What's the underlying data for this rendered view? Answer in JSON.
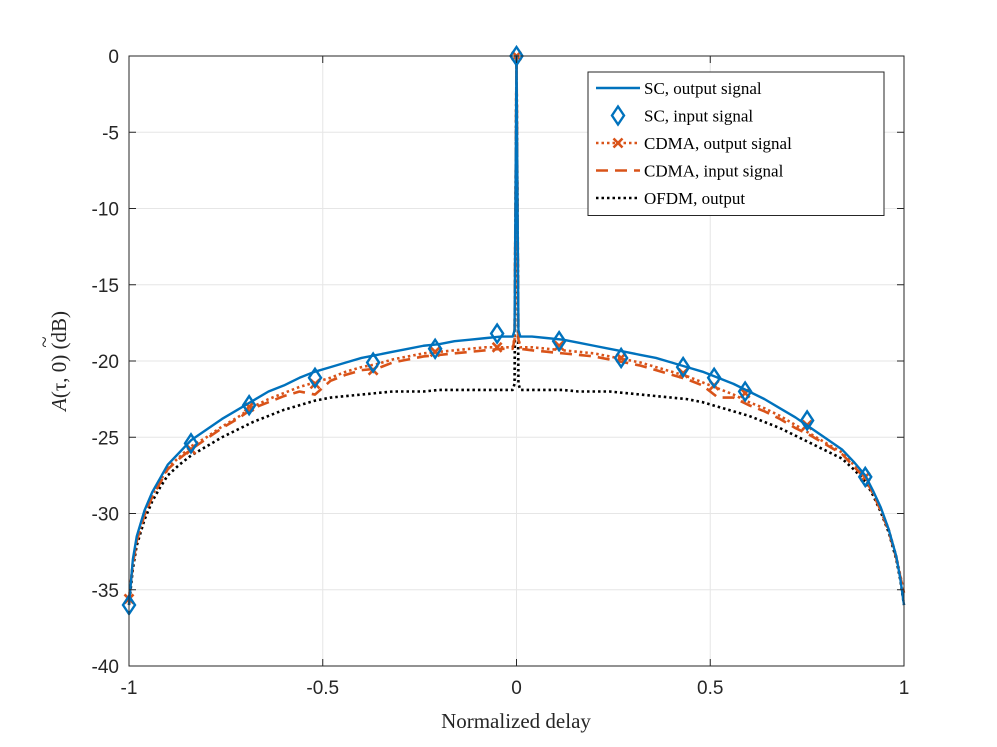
{
  "chart_data": {
    "type": "line",
    "title": "",
    "xlabel": "Normalized delay",
    "ylabel_parts": {
      "symbol": "A",
      "accent": "~",
      "args": "(τ, 0)",
      "unit": " (dB)"
    },
    "xlim": [
      -1,
      1
    ],
    "ylim": [
      -40,
      0
    ],
    "x_ticks": [
      -1,
      -0.5,
      0,
      0.5,
      1
    ],
    "x_tick_labels": [
      "-1",
      "-0.5",
      "0",
      "0.5",
      "1"
    ],
    "y_ticks": [
      0,
      -5,
      -10,
      -15,
      -20,
      -25,
      -30,
      -35,
      -40
    ],
    "y_tick_labels": [
      "0",
      "-5",
      "-10",
      "-15",
      "-20",
      "-25",
      "-30",
      "-35",
      "-40"
    ],
    "grid": true,
    "legend_position": "top-right",
    "series": [
      {
        "name": "SC, output signal",
        "color": "#0072BD",
        "style": "solid",
        "marker": "none",
        "x": [
          -1,
          -0.99,
          -0.98,
          -0.96,
          -0.94,
          -0.92,
          -0.9,
          -0.87,
          -0.84,
          -0.8,
          -0.76,
          -0.72,
          -0.68,
          -0.64,
          -0.6,
          -0.56,
          -0.52,
          -0.48,
          -0.44,
          -0.4,
          -0.36,
          -0.32,
          -0.28,
          -0.24,
          -0.2,
          -0.16,
          -0.12,
          -0.08,
          -0.04,
          -0.01,
          -0.005,
          0,
          0.005,
          0.01,
          0.04,
          0.08,
          0.12,
          0.16,
          0.2,
          0.24,
          0.28,
          0.32,
          0.36,
          0.4,
          0.44,
          0.48,
          0.52,
          0.56,
          0.6,
          0.64,
          0.68,
          0.72,
          0.76,
          0.8,
          0.84,
          0.87,
          0.9,
          0.92,
          0.94,
          0.96,
          0.98,
          0.99,
          1
        ],
        "y": [
          -36,
          -33,
          -31.5,
          -29.8,
          -28.6,
          -27.7,
          -26.8,
          -26,
          -25.2,
          -24.5,
          -23.8,
          -23.2,
          -22.6,
          -22,
          -21.6,
          -21.1,
          -20.7,
          -20.4,
          -20.1,
          -19.8,
          -19.6,
          -19.4,
          -19.2,
          -19,
          -18.9,
          -18.7,
          -18.6,
          -18.5,
          -18.4,
          -18.4,
          -18,
          0,
          -18,
          -18.4,
          -18.4,
          -18.5,
          -18.6,
          -18.8,
          -19,
          -19.2,
          -19.4,
          -19.6,
          -19.8,
          -20.1,
          -20.4,
          -20.7,
          -21.1,
          -21.5,
          -22,
          -22.5,
          -23.1,
          -23.7,
          -24.4,
          -25.1,
          -25.8,
          -26.6,
          -27.5,
          -28.5,
          -29.6,
          -31,
          -32.8,
          -34.2,
          -36
        ]
      },
      {
        "name": "SC, input signal",
        "color": "#0072BD",
        "style": "none",
        "marker": "diamond",
        "x": [
          -1,
          -0.84,
          -0.69,
          -0.52,
          -0.37,
          -0.21,
          -0.05,
          0,
          0.11,
          0.27,
          0.43,
          0.51,
          0.59,
          0.75,
          0.9
        ],
        "y": [
          -36,
          -25.4,
          -22.9,
          -21.1,
          -20.1,
          -19.2,
          -18.2,
          0,
          -18.7,
          -19.8,
          -20.4,
          -21.1,
          -22,
          -23.9,
          -27.6
        ]
      },
      {
        "name": "CDMA, output signal",
        "color": "#D95319",
        "style": "dotted",
        "marker": "x",
        "x": [
          -1,
          -0.99,
          -0.98,
          -0.96,
          -0.94,
          -0.92,
          -0.9,
          -0.87,
          -0.84,
          -0.8,
          -0.76,
          -0.72,
          -0.68,
          -0.64,
          -0.6,
          -0.56,
          -0.52,
          -0.48,
          -0.44,
          -0.4,
          -0.36,
          -0.32,
          -0.28,
          -0.24,
          -0.2,
          -0.16,
          -0.12,
          -0.08,
          -0.04,
          -0.01,
          -0.005,
          0,
          0.005,
          0.01,
          0.04,
          0.08,
          0.12,
          0.16,
          0.2,
          0.24,
          0.28,
          0.32,
          0.36,
          0.4,
          0.44,
          0.48,
          0.52,
          0.56,
          0.6,
          0.64,
          0.68,
          0.72,
          0.76,
          0.8,
          0.84,
          0.87,
          0.9,
          0.92,
          0.94,
          0.96,
          0.98,
          0.99,
          1
        ],
        "y": [
          -35.6,
          -33.2,
          -31.7,
          -30,
          -28.8,
          -27.9,
          -27,
          -26.3,
          -25.6,
          -25,
          -24.3,
          -23.7,
          -23,
          -22.5,
          -22.1,
          -21.7,
          -21.4,
          -21.1,
          -20.7,
          -20.4,
          -20.2,
          -19.9,
          -19.7,
          -19.5,
          -19.4,
          -19.3,
          -19.2,
          -19.1,
          -19.1,
          -19.1,
          -18.5,
          0,
          -18.5,
          -19.1,
          -19.1,
          -19.2,
          -19.3,
          -19.4,
          -19.5,
          -19.7,
          -19.9,
          -20.1,
          -20.4,
          -20.7,
          -21,
          -21.4,
          -21.8,
          -22.2,
          -22.7,
          -23.1,
          -23.6,
          -24.2,
          -24.8,
          -25.4,
          -26,
          -26.8,
          -27.6,
          -28.6,
          -29.7,
          -31,
          -32.8,
          -34,
          -35.2
        ],
        "marker_x": [
          -1,
          -0.84,
          -0.69,
          -0.52,
          -0.37,
          -0.21,
          -0.05,
          0,
          0.11,
          0.27,
          0.43,
          0.51,
          0.59,
          0.75,
          0.9
        ],
        "marker_y": [
          -35.6,
          -25.8,
          -23,
          -21.5,
          -20.6,
          -19.4,
          -19.1,
          0,
          -19,
          -19.8,
          -20.8,
          -21.6,
          -22.1,
          -24.2,
          -27.6
        ]
      },
      {
        "name": "CDMA, input signal",
        "color": "#D95319",
        "style": "dashed",
        "marker": "none",
        "x": [
          -1,
          -0.99,
          -0.98,
          -0.96,
          -0.94,
          -0.92,
          -0.9,
          -0.87,
          -0.84,
          -0.8,
          -0.76,
          -0.72,
          -0.68,
          -0.64,
          -0.6,
          -0.56,
          -0.52,
          -0.48,
          -0.44,
          -0.4,
          -0.36,
          -0.32,
          -0.28,
          -0.24,
          -0.2,
          -0.16,
          -0.12,
          -0.08,
          -0.04,
          -0.01,
          -0.005,
          0,
          0.005,
          0.01,
          0.04,
          0.08,
          0.12,
          0.16,
          0.2,
          0.24,
          0.28,
          0.32,
          0.36,
          0.4,
          0.44,
          0.48,
          0.52,
          0.56,
          0.6,
          0.64,
          0.68,
          0.72,
          0.76,
          0.8,
          0.84,
          0.87,
          0.9,
          0.92,
          0.94,
          0.96,
          0.98,
          0.99,
          1
        ],
        "y": [
          -35.6,
          -33.3,
          -31.8,
          -30.1,
          -28.9,
          -28,
          -27.1,
          -26.4,
          -25.8,
          -25.1,
          -24.4,
          -23.8,
          -23.1,
          -22.7,
          -22.3,
          -22,
          -22.2,
          -21.3,
          -20.9,
          -20.6,
          -20.5,
          -20.1,
          -19.9,
          -19.7,
          -19.6,
          -19.5,
          -19.4,
          -19.3,
          -19.2,
          -19.2,
          -18.6,
          0,
          -18.6,
          -19.2,
          -19.3,
          -19.4,
          -19.5,
          -19.6,
          -19.7,
          -19.9,
          -20.1,
          -20.3,
          -20.6,
          -20.9,
          -21.2,
          -21.6,
          -22.4,
          -22.4,
          -22.9,
          -23.3,
          -23.8,
          -24.4,
          -24.9,
          -25.5,
          -26.1,
          -26.9,
          -27.7,
          -28.7,
          -29.8,
          -31.1,
          -32.9,
          -34.1,
          -35.2
        ]
      },
      {
        "name": "OFDM, output",
        "color": "#000000",
        "style": "dotted",
        "marker": "none",
        "x": [
          -1,
          -0.99,
          -0.98,
          -0.96,
          -0.94,
          -0.92,
          -0.9,
          -0.87,
          -0.84,
          -0.8,
          -0.76,
          -0.72,
          -0.68,
          -0.64,
          -0.6,
          -0.56,
          -0.52,
          -0.48,
          -0.44,
          -0.4,
          -0.36,
          -0.32,
          -0.28,
          -0.24,
          -0.2,
          -0.16,
          -0.12,
          -0.08,
          -0.04,
          -0.01,
          -0.005,
          0,
          0.005,
          0.01,
          0.04,
          0.08,
          0.12,
          0.16,
          0.2,
          0.24,
          0.28,
          0.32,
          0.36,
          0.4,
          0.44,
          0.48,
          0.52,
          0.56,
          0.6,
          0.64,
          0.68,
          0.72,
          0.76,
          0.8,
          0.84,
          0.87,
          0.9,
          0.92,
          0.94,
          0.96,
          0.98,
          0.99,
          1
        ],
        "y": [
          -36,
          -33.6,
          -32.1,
          -30.4,
          -29.2,
          -28.3,
          -27.5,
          -26.8,
          -26.2,
          -25.6,
          -25,
          -24.5,
          -24,
          -23.6,
          -23.2,
          -22.9,
          -22.6,
          -22.4,
          -22.3,
          -22.2,
          -22.1,
          -22,
          -22,
          -22,
          -21.9,
          -21.9,
          -21.9,
          -21.9,
          -21.9,
          -21.9,
          -21.5,
          0,
          -21.5,
          -21.9,
          -21.9,
          -21.9,
          -21.9,
          -22,
          -22,
          -22,
          -22.1,
          -22.2,
          -22.3,
          -22.4,
          -22.5,
          -22.7,
          -23,
          -23.3,
          -23.6,
          -24,
          -24.4,
          -24.9,
          -25.4,
          -25.9,
          -26.4,
          -27.1,
          -27.9,
          -28.8,
          -29.9,
          -31.2,
          -33,
          -34.3,
          -36
        ]
      }
    ]
  }
}
